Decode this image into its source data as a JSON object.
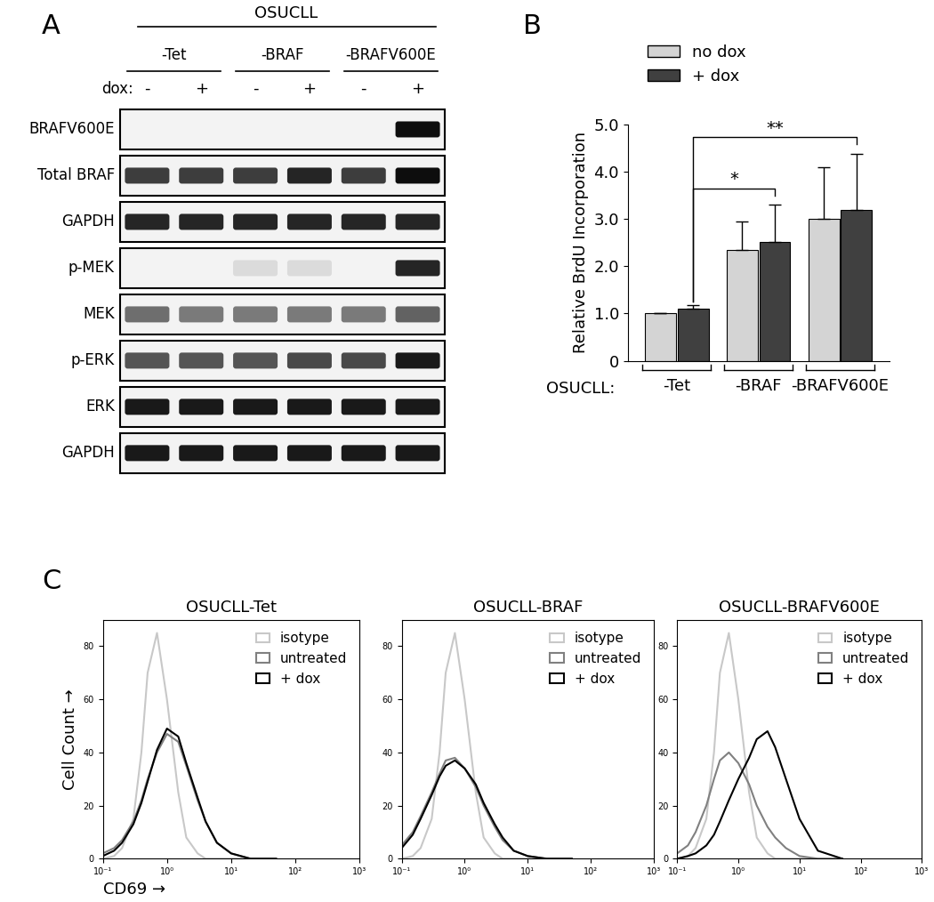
{
  "panel_labels": [
    "A",
    "B",
    "C"
  ],
  "blot": {
    "header": "OSUCLL",
    "groups": [
      "-Tet",
      "-BRAF",
      "-BRAFV600E"
    ],
    "lane_label": "dox:",
    "lanes": [
      "-",
      "+",
      "-",
      "+",
      "-",
      "+"
    ],
    "rows": [
      {
        "name": "BRAFV600E",
        "intensity": [
          0,
          0,
          0,
          0,
          0,
          1.0
        ]
      },
      {
        "name": "Total BRAF",
        "intensity": [
          0.8,
          0.8,
          0.8,
          0.9,
          0.8,
          1.0
        ]
      },
      {
        "name": "GAPDH",
        "intensity": [
          0.9,
          0.9,
          0.9,
          0.9,
          0.9,
          0.9
        ]
      },
      {
        "name": "p-MEK",
        "intensity": [
          0,
          0,
          0.15,
          0.15,
          0,
          0.9
        ]
      },
      {
        "name": "MEK",
        "intensity": [
          0.6,
          0.55,
          0.55,
          0.55,
          0.55,
          0.65
        ]
      },
      {
        "name": "p-ERK",
        "intensity": [
          0.7,
          0.7,
          0.7,
          0.75,
          0.75,
          0.95
        ]
      },
      {
        "name": "ERK",
        "intensity": [
          0.95,
          0.95,
          0.95,
          0.95,
          0.95,
          0.95
        ]
      },
      {
        "name": "GAPDH",
        "intensity": [
          0.95,
          0.95,
          0.95,
          0.95,
          0.95,
          0.95
        ]
      }
    ]
  },
  "chart_data": [
    {
      "type": "bar",
      "ylabel": "Relative BrdU Incorporation",
      "category_axis_label": "OSUCLL:",
      "categories": [
        "-Tet",
        "-BRAF",
        "-BRAFV600E"
      ],
      "series": [
        {
          "name": "no dox",
          "color": "#d4d4d4",
          "values": [
            1.0,
            2.35,
            3.0
          ],
          "errors": [
            0,
            0.6,
            1.1
          ]
        },
        {
          "name": "+ dox",
          "color": "#404040",
          "values": [
            1.1,
            2.52,
            3.2
          ],
          "errors": [
            0.07,
            0.78,
            1.18
          ]
        }
      ],
      "ylim": [
        0,
        5
      ],
      "yticks": [
        0,
        {
          "value": 1,
          "label": "1.0"
        },
        {
          "value": 2,
          "label": "2.0"
        },
        {
          "value": 3,
          "label": "3.0"
        },
        {
          "value": 4,
          "label": "4.0"
        },
        {
          "value": 5,
          "label": "5.0"
        }
      ],
      "legend": "upper left",
      "significance": [
        {
          "label": "*",
          "series": "+ dox",
          "between": [
            "-Tet",
            "-BRAF"
          ]
        },
        {
          "label": "**",
          "series": "+ dox",
          "between": [
            "-Tet",
            "-BRAFV600E"
          ]
        }
      ]
    },
    {
      "type": "line",
      "title": "OSUCLL-Tet",
      "xlabel": "CD69 →",
      "ylabel": "Cell Count →",
      "x": [
        0.1,
        0.15,
        0.2,
        0.3,
        0.4,
        0.5,
        0.7,
        1,
        1.5,
        2,
        3,
        4,
        6,
        10,
        20,
        50
      ],
      "series": [
        {
          "name": "isotype",
          "color": "#c8c8c8",
          "values": [
            0,
            1,
            4,
            15,
            40,
            70,
            85,
            60,
            25,
            8,
            2,
            0,
            0,
            0,
            0,
            0
          ]
        },
        {
          "name": "untreated",
          "color": "#808080",
          "values": [
            2,
            4,
            7,
            14,
            22,
            30,
            40,
            47,
            44,
            35,
            22,
            14,
            6,
            2,
            0,
            0
          ]
        },
        {
          "name": "+ dox",
          "color": "#000000",
          "values": [
            1,
            3,
            6,
            13,
            21,
            29,
            41,
            49,
            46,
            36,
            23,
            14,
            6,
            2,
            0,
            0
          ]
        }
      ],
      "log": "x",
      "xlim": [
        0.1,
        1000
      ],
      "xticks": [
        {
          "value": 0.1,
          "label": "10⁻¹"
        },
        {
          "value": 1,
          "label": "10⁰"
        },
        {
          "value": 10,
          "label": "10¹"
        },
        {
          "value": 100,
          "label": "10²"
        },
        {
          "value": 1000,
          "label": "10³"
        }
      ],
      "ylim": [
        0,
        90
      ],
      "yticks": [
        0,
        20,
        40,
        60,
        80
      ],
      "legend": "upper right"
    },
    {
      "type": "line",
      "title": "OSUCLL-BRAF",
      "x": [
        0.1,
        0.15,
        0.2,
        0.3,
        0.4,
        0.5,
        0.7,
        1,
        1.5,
        2,
        3,
        4,
        6,
        10,
        20,
        50
      ],
      "series": [
        {
          "name": "isotype",
          "color": "#c8c8c8",
          "values": [
            0,
            1,
            4,
            15,
            40,
            70,
            85,
            60,
            25,
            8,
            2,
            0,
            0,
            0,
            0,
            0
          ]
        },
        {
          "name": "untreated",
          "color": "#808080",
          "values": [
            5,
            10,
            16,
            25,
            32,
            37,
            38,
            34,
            27,
            20,
            12,
            7,
            3,
            1,
            0,
            0
          ]
        },
        {
          "name": "+ dox",
          "color": "#000000",
          "values": [
            4,
            9,
            15,
            24,
            31,
            35,
            37,
            34,
            28,
            21,
            13,
            8,
            3,
            1,
            0,
            0
          ]
        }
      ],
      "log": "x",
      "xlim": [
        0.1,
        1000
      ],
      "xticks": [
        {
          "value": 0.1,
          "label": "10⁻¹"
        },
        {
          "value": 1,
          "label": "10⁰"
        },
        {
          "value": 10,
          "label": "10¹"
        },
        {
          "value": 100,
          "label": "10²"
        },
        {
          "value": 1000,
          "label": "10³"
        }
      ],
      "ylim": [
        0,
        90
      ],
      "yticks": [
        0,
        20,
        40,
        60,
        80
      ],
      "legend": "upper right"
    },
    {
      "type": "line",
      "title": "OSUCLL-BRAFV600E",
      "x": [
        0.1,
        0.15,
        0.2,
        0.3,
        0.4,
        0.5,
        0.7,
        1,
        1.5,
        2,
        3,
        4,
        6,
        10,
        20,
        50
      ],
      "series": [
        {
          "name": "isotype",
          "color": "#c8c8c8",
          "values": [
            0,
            1,
            4,
            15,
            40,
            70,
            85,
            60,
            25,
            8,
            2,
            0,
            0,
            0,
            0,
            0
          ]
        },
        {
          "name": "untreated",
          "color": "#808080",
          "values": [
            2,
            5,
            10,
            20,
            30,
            37,
            40,
            36,
            28,
            20,
            12,
            8,
            4,
            1,
            0,
            0
          ]
        },
        {
          "name": "+ dox",
          "color": "#000000",
          "values": [
            0,
            1,
            2,
            5,
            9,
            14,
            22,
            30,
            38,
            45,
            48,
            42,
            30,
            15,
            3,
            0
          ]
        }
      ],
      "log": "x",
      "xlim": [
        0.1,
        1000
      ],
      "xticks": [
        {
          "value": 0.1,
          "label": "10⁻¹"
        },
        {
          "value": 1,
          "label": "10⁰"
        },
        {
          "value": 10,
          "label": "10¹"
        },
        {
          "value": 100,
          "label": "10²"
        },
        {
          "value": 1000,
          "label": "10³"
        }
      ],
      "ylim": [
        0,
        90
      ],
      "yticks": [
        0,
        20,
        40,
        60,
        80
      ],
      "legend": "upper right"
    }
  ]
}
